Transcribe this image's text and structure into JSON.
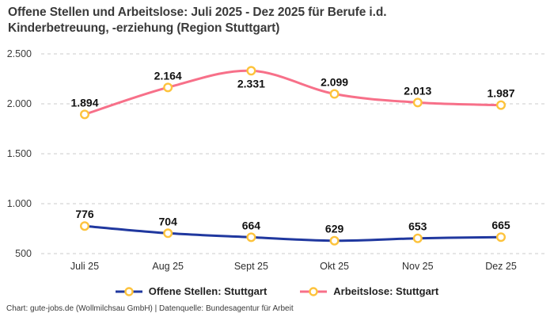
{
  "title": "Offene Stellen und Arbeitslose: Juli 2025 - Dez 2025 für Berufe i.d. Kinderbetreuung, -erziehung (Region Stuttgart)",
  "footer": "Chart: gute-jobs.de (Wollmilchsau GmbH) | Datenquelle: Bundesagentur für Arbeit",
  "colors": {
    "open_positions_line": "#20389f",
    "unemployed_line": "#f77089",
    "marker_stroke": "#fdc33c",
    "marker_fill": "#ffffff",
    "grid": "#cbcbcb",
    "title_text": "#3a3a3a",
    "data_label_text": "#111111",
    "axis_text": "#3d3d3d"
  },
  "chart_data": {
    "type": "line",
    "categories": [
      "Juli 25",
      "Aug 25",
      "Sept 25",
      "Okt 25",
      "Nov 25",
      "Dez 25"
    ],
    "series": [
      {
        "name": "Offene Stellen: Stuttgart",
        "values": [
          776,
          704,
          664,
          629,
          653,
          665
        ],
        "labels": [
          "776",
          "704",
          "664",
          "629",
          "653",
          "665"
        ],
        "color": "#20389f",
        "label_below": [
          false,
          false,
          false,
          false,
          false,
          false
        ]
      },
      {
        "name": "Arbeitslose: Stuttgart",
        "values": [
          1894,
          2164,
          2331,
          2099,
          2013,
          1987
        ],
        "labels": [
          "1.894",
          "2.164",
          "2.331",
          "2.099",
          "2.013",
          "1.987"
        ],
        "color": "#f77089",
        "label_below": [
          false,
          false,
          true,
          false,
          false,
          false
        ]
      }
    ],
    "yticks": {
      "values": [
        500,
        1000,
        1500,
        2000,
        2500
      ],
      "labels": [
        "500",
        "1.000",
        "1.500",
        "2.000",
        "2.500"
      ]
    },
    "ylim": [
      500,
      2500
    ],
    "grid": "horizontal-dashed",
    "legend_position": "bottom",
    "marker": {
      "shape": "circle",
      "fill": "#ffffff",
      "stroke": "#fdc33c"
    }
  }
}
